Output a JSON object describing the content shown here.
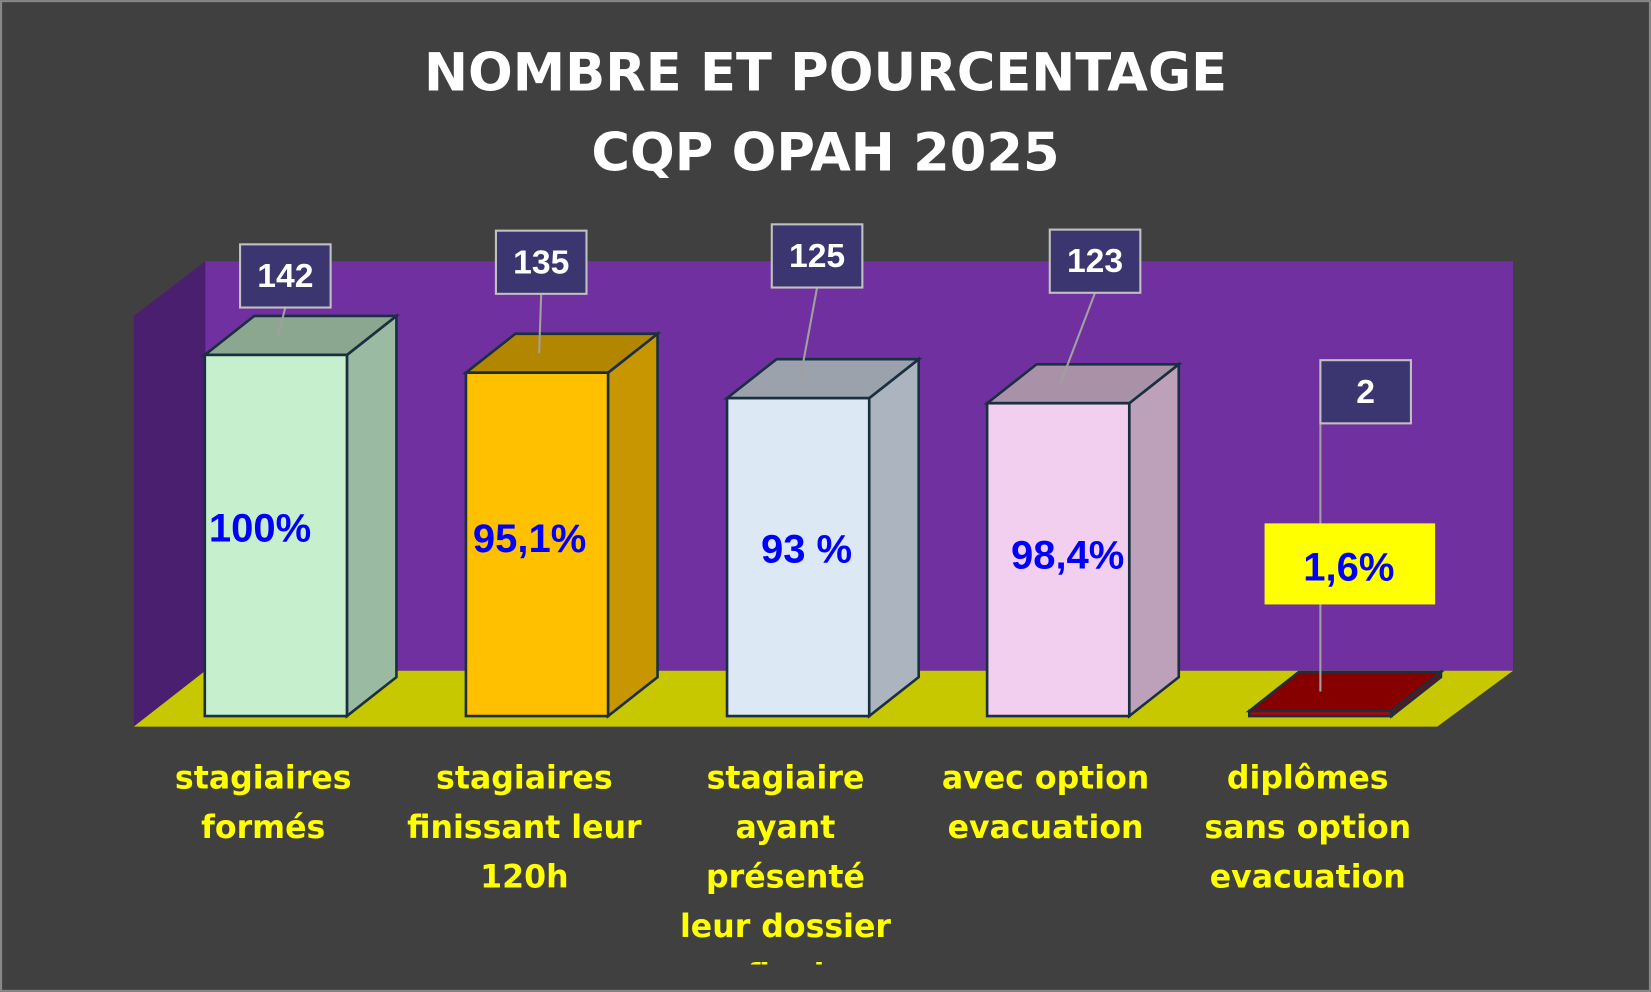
{
  "chart_data": {
    "type": "bar3d",
    "title": "NOMBRE ET POURCENTAGE",
    "subtitle": "CQP OPAH 2025",
    "categories": [
      "stagiaires formés",
      "stagiaires finissant leur 120h",
      "stagiaire ayant présenté leur dossier final",
      "avec option evacuation",
      "diplômes sans option evacuation"
    ],
    "values": [
      142,
      135,
      125,
      123,
      2
    ],
    "percent_labels": [
      "100%",
      "95,1%",
      "93 %",
      "98,4%",
      "1,6%"
    ],
    "colors": [
      "#c6efce",
      "#ffc000",
      "#dde8f5",
      "#f2cfee",
      "#c00000"
    ]
  }
}
